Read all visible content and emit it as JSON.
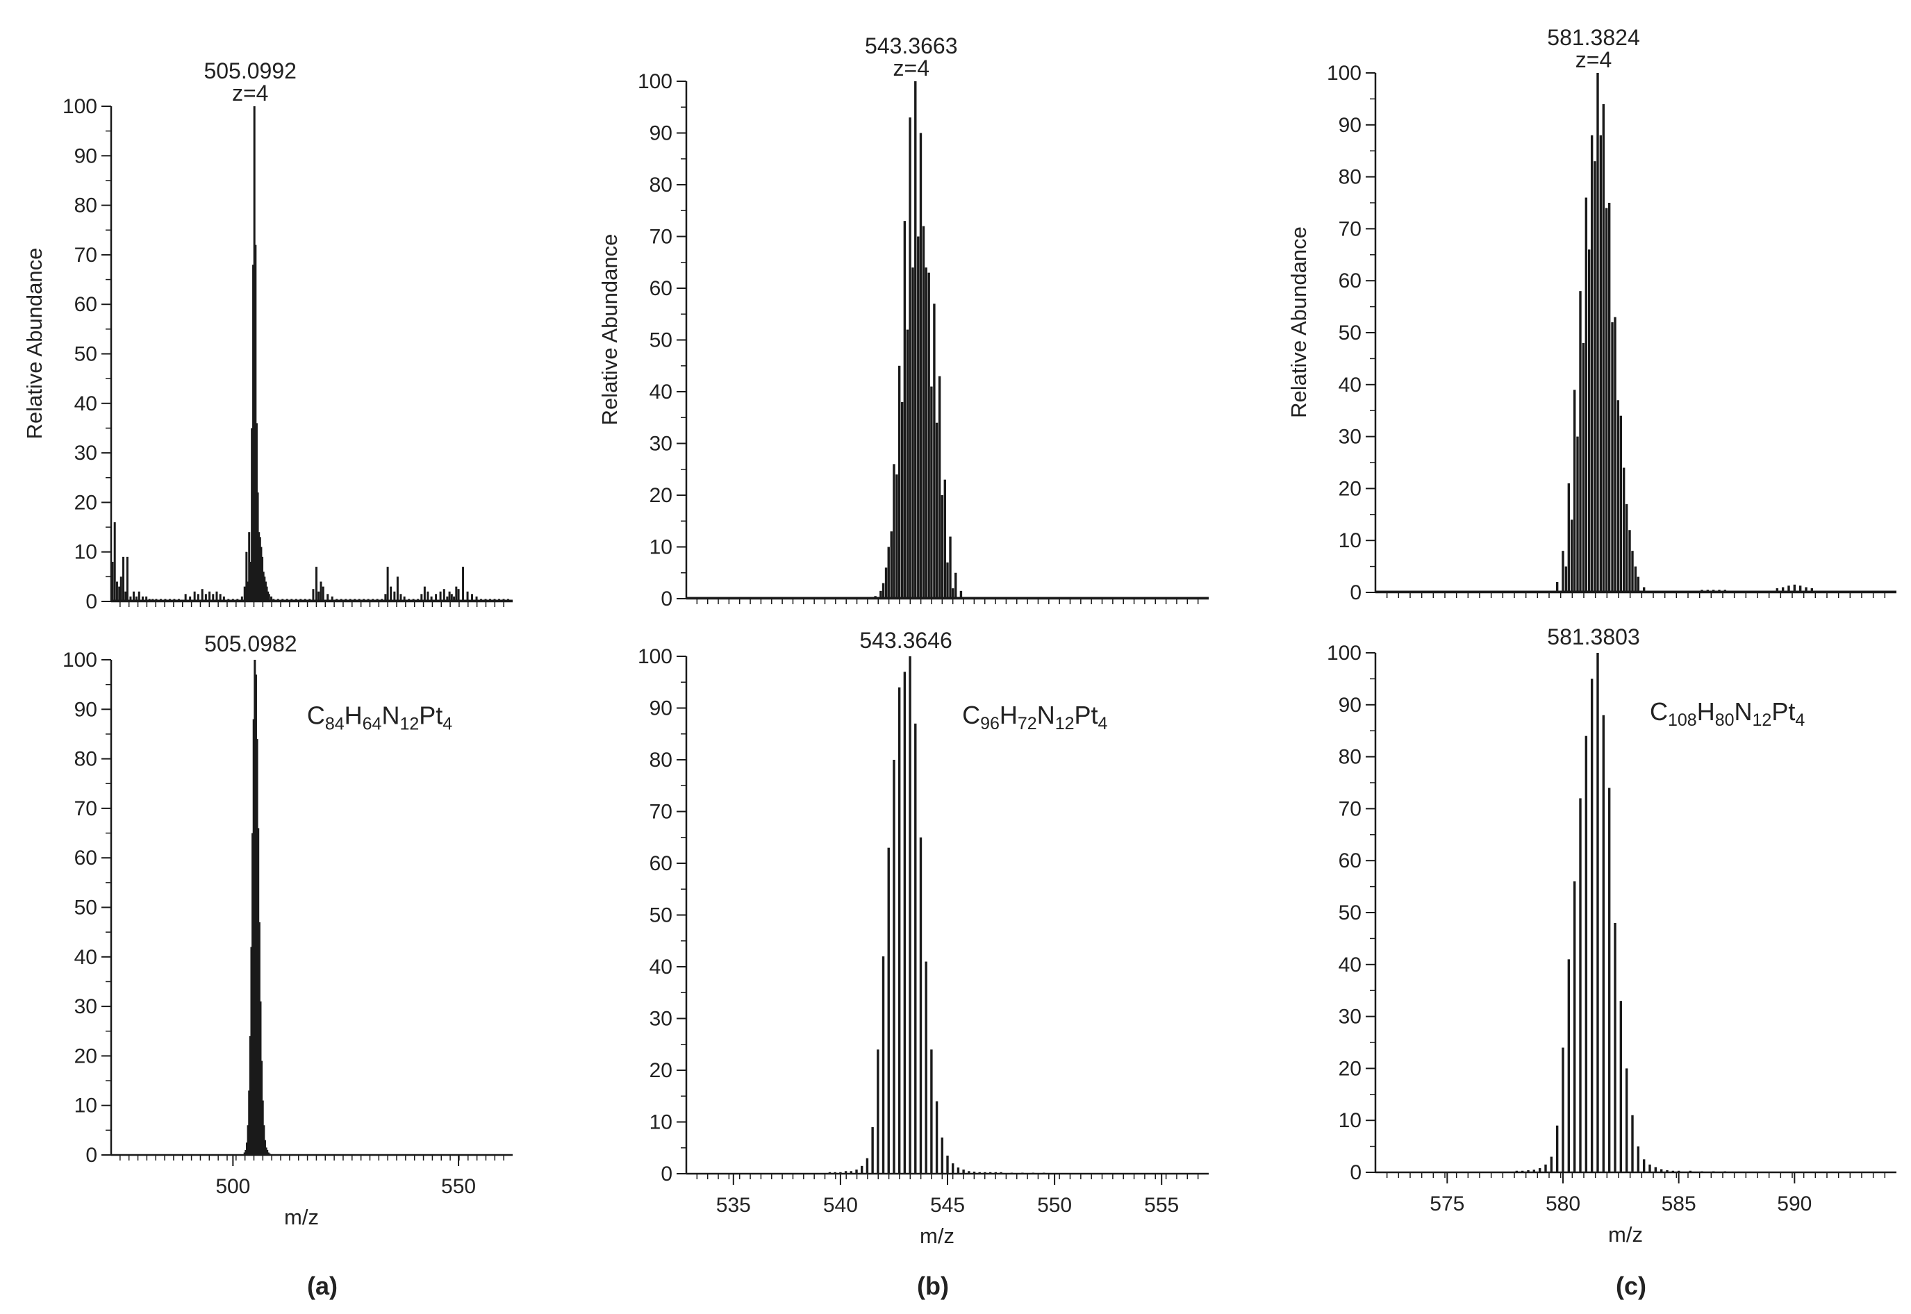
{
  "figure": {
    "panels": [
      {
        "id": "a",
        "label": "(a)"
      },
      {
        "id": "b",
        "label": "(b)"
      },
      {
        "id": "c",
        "label": "(c)"
      }
    ]
  },
  "chart_data": [
    {
      "type": "bar",
      "panel": "a",
      "role": "experimental",
      "peak_label": "505.0992",
      "charge_label": "z=4",
      "ylabel": "Relative Abundance",
      "xlabel": "",
      "xlim": [
        473,
        562
      ],
      "ylim": [
        0,
        100
      ],
      "yticks": [
        0,
        10,
        20,
        30,
        40,
        50,
        60,
        70,
        80,
        90,
        100
      ],
      "xticks": [],
      "series": [
        {
          "x": [
            473.3,
            473.8,
            474.3,
            474.8,
            475.2,
            475.7,
            476.2,
            476.6,
            477.3,
            478.0,
            478.6,
            479.2,
            480.0,
            480.8,
            481.5,
            482.2,
            483.0,
            484.0,
            485.0,
            486.0,
            487.0,
            488.0,
            489.5,
            490.5,
            491.5,
            492.3,
            493.2,
            494.0,
            494.8,
            495.6,
            496.4,
            497.2,
            498.0,
            499.0,
            500.0,
            501.0,
            502.0,
            502.6,
            503.0,
            503.3,
            503.6,
            503.9,
            504.2,
            504.5,
            504.75,
            505.0,
            505.25,
            505.5,
            505.75,
            506.0,
            506.25,
            506.5,
            506.75,
            507.0,
            507.25,
            507.5,
            507.75,
            508.0,
            508.5,
            509.0,
            510.0,
            511.0,
            512.0,
            513.0,
            514.0,
            515.0,
            516.0,
            517.0,
            517.8,
            518.5,
            519.0,
            519.5,
            520.0,
            521.0,
            522.0,
            523.0,
            524.0,
            525.0,
            526.0,
            527.0,
            528.0,
            529.0,
            530.0,
            531.0,
            532.0,
            533.0,
            533.8,
            534.3,
            535.0,
            535.8,
            536.5,
            537.2,
            538.0,
            539.0,
            540.0,
            541.0,
            541.8,
            542.5,
            543.2,
            544.0,
            545.0,
            546.0,
            546.8,
            547.5,
            548.0,
            548.5,
            549.0,
            549.5,
            550.0,
            551.0,
            552.0,
            553.0,
            554.0,
            555.0,
            556.0,
            557.0,
            558.0,
            559.0,
            560.0,
            561.0
          ],
          "y": [
            8,
            16,
            4,
            3,
            5,
            9,
            2,
            9,
            1,
            2,
            1,
            2,
            1,
            1,
            0.5,
            0.5,
            0.5,
            0.5,
            0.5,
            0.5,
            0.5,
            0.5,
            1.5,
            1,
            2,
            1.5,
            2.5,
            1.5,
            2,
            1.5,
            2,
            1.5,
            1,
            0.5,
            0.5,
            0.5,
            1,
            3,
            10,
            4,
            14,
            8,
            35,
            68,
            100,
            72,
            36,
            22,
            14,
            13,
            11,
            9,
            6,
            5,
            4,
            3,
            2,
            1.5,
            1,
            0.5,
            0.5,
            0.5,
            0.5,
            0.5,
            0.5,
            0.5,
            0.5,
            0.5,
            2.5,
            7,
            2,
            4,
            3,
            1.5,
            1,
            0.5,
            0.5,
            0.5,
            0.5,
            0.5,
            0.5,
            0.5,
            0.5,
            0.5,
            0.5,
            0.5,
            1.5,
            7,
            3,
            2,
            5,
            1.5,
            1,
            0.5,
            0.5,
            0.5,
            1.5,
            3,
            2,
            1,
            1.5,
            2,
            2.5,
            1,
            2,
            1.5,
            1,
            3,
            2.5,
            7,
            2,
            1.5,
            1,
            0.5,
            0.5,
            0.5,
            0.5,
            0.5,
            0.5,
            0.5
          ]
        }
      ]
    },
    {
      "type": "bar",
      "panel": "a",
      "role": "simulated",
      "peak_label": "505.0982",
      "formula": {
        "parts": [
          {
            "t": "C",
            "sub": false
          },
          {
            "t": "84",
            "sub": true
          },
          {
            "t": "H",
            "sub": false
          },
          {
            "t": "64",
            "sub": true
          },
          {
            "t": "N",
            "sub": false
          },
          {
            "t": "12",
            "sub": true
          },
          {
            "t": "Pt",
            "sub": false
          },
          {
            "t": "4",
            "sub": true
          }
        ]
      },
      "ylabel": "",
      "xlabel": "m/z",
      "xlim": [
        473,
        562
      ],
      "ylim": [
        0,
        100
      ],
      "yticks": [
        0,
        10,
        20,
        30,
        40,
        50,
        60,
        70,
        80,
        90,
        100
      ],
      "xticks": [
        500,
        550
      ],
      "series": [
        {
          "x": [
            502.6,
            502.85,
            503.1,
            503.35,
            503.6,
            503.85,
            504.1,
            504.35,
            504.6,
            504.85,
            505.1,
            505.35,
            505.6,
            505.85,
            506.1,
            506.35,
            506.6,
            506.85,
            507.1,
            507.35,
            507.6,
            507.85,
            508.1
          ],
          "y": [
            0.5,
            1,
            2.5,
            6,
            13,
            24,
            42,
            65,
            88,
            100,
            97,
            84,
            66,
            47,
            31,
            19,
            11,
            6,
            3,
            1.5,
            1,
            0.5,
            0.3
          ]
        }
      ]
    },
    {
      "type": "bar",
      "panel": "b",
      "role": "experimental",
      "peak_label": "543.3663",
      "charge_label": "z=4",
      "ylabel": "Relative Abundance",
      "xlabel": "",
      "xlim": [
        532.8,
        557.2
      ],
      "ylim": [
        0,
        100
      ],
      "yticks": [
        0,
        10,
        20,
        30,
        40,
        50,
        60,
        70,
        80,
        90,
        100
      ],
      "xticks": [],
      "series": [
        {
          "x": [
            541.63,
            541.88,
            542.13,
            542.38,
            542.63,
            542.88,
            543.13,
            543.38,
            543.63,
            543.88,
            544.13,
            544.38,
            544.63,
            544.88,
            545.13,
            545.38,
            545.63,
            542.0,
            542.25,
            542.5,
            542.75,
            543.0,
            543.25,
            543.5,
            543.75,
            544.0,
            544.25,
            544.5,
            544.75,
            545.0,
            545.25
          ],
          "y": [
            0.5,
            1.5,
            6,
            13,
            24,
            38,
            52,
            64,
            70,
            72,
            63,
            57,
            43,
            23,
            12,
            5,
            1.5,
            3,
            10,
            26,
            45,
            73,
            93,
            100,
            90,
            64,
            41,
            34,
            20,
            7,
            2
          ]
        }
      ]
    },
    {
      "type": "bar",
      "panel": "b",
      "role": "simulated",
      "peak_label": "543.3646",
      "formula": {
        "parts": [
          {
            "t": "C",
            "sub": false
          },
          {
            "t": "96",
            "sub": true
          },
          {
            "t": "H",
            "sub": false
          },
          {
            "t": "72",
            "sub": true
          },
          {
            "t": "N",
            "sub": false
          },
          {
            "t": "12",
            "sub": true
          },
          {
            "t": "Pt",
            "sub": false
          },
          {
            "t": "4",
            "sub": true
          }
        ]
      },
      "ylabel": "",
      "xlabel": "m/z",
      "xlim": [
        532.8,
        557.2
      ],
      "ylim": [
        0,
        100
      ],
      "yticks": [
        0,
        10,
        20,
        30,
        40,
        50,
        60,
        70,
        80,
        90,
        100
      ],
      "xticks": [
        535,
        540,
        545,
        550,
        555
      ],
      "series": [
        {
          "x": [
            539.5,
            539.75,
            540.0,
            540.25,
            540.5,
            540.75,
            541.0,
            541.25,
            541.5,
            541.75,
            542.0,
            542.25,
            542.5,
            542.75,
            543.0,
            543.25,
            543.5,
            543.75,
            544.0,
            544.25,
            544.5,
            544.75,
            545.0,
            545.25,
            545.5,
            545.75,
            546.0,
            546.25,
            546.5,
            546.75,
            547.0,
            547.25,
            547.5,
            548.0,
            548.5,
            549.0,
            549.5
          ],
          "y": [
            0.3,
            0.3,
            0.3,
            0.5,
            0.5,
            0.8,
            1.5,
            3,
            9,
            24,
            42,
            63,
            80,
            94,
            97,
            100,
            87,
            65,
            41,
            24,
            14,
            7,
            3.5,
            2,
            1.2,
            0.8,
            0.5,
            0.4,
            0.3,
            0.3,
            0.3,
            0.3,
            0.3,
            0.2,
            0.2,
            0.2,
            0.2
          ]
        }
      ]
    },
    {
      "type": "bar",
      "panel": "c",
      "role": "experimental",
      "peak_label": "581.3824",
      "charge_label": "z=4",
      "ylabel": "Relative Abundance",
      "xlabel": "",
      "xlim": [
        571.9,
        594.4
      ],
      "ylim": [
        0,
        100
      ],
      "yticks": [
        0,
        10,
        20,
        30,
        40,
        50,
        60,
        70,
        80,
        90,
        100
      ],
      "xticks": [],
      "series": [
        {
          "x": [
            579.75,
            580.0,
            580.25,
            580.5,
            580.75,
            581.0,
            581.25,
            581.5,
            581.75,
            582.0,
            582.25,
            582.5,
            582.75,
            583.0,
            583.25,
            583.5,
            580.13,
            580.38,
            580.63,
            580.88,
            581.13,
            581.38,
            581.63,
            581.88,
            582.13,
            582.38,
            582.63,
            582.88,
            583.13,
            586.0,
            586.25,
            586.5,
            586.75,
            587.0,
            589.25,
            589.5,
            589.75,
            590.0,
            590.25,
            590.5,
            590.75
          ],
          "y": [
            2,
            8,
            21,
            39,
            58,
            76,
            88,
            100,
            94,
            75,
            53,
            34,
            17,
            8,
            3,
            1,
            5,
            14,
            30,
            48,
            66,
            83,
            88,
            74,
            52,
            37,
            24,
            12,
            5,
            0.5,
            0.5,
            0.5,
            0.5,
            0.5,
            0.8,
            1,
            1.3,
            1.5,
            1.3,
            1,
            0.8
          ]
        }
      ]
    },
    {
      "type": "bar",
      "panel": "c",
      "role": "simulated",
      "peak_label": "581.3803",
      "formula": {
        "parts": [
          {
            "t": "C",
            "sub": false
          },
          {
            "t": "108",
            "sub": true
          },
          {
            "t": "H",
            "sub": false
          },
          {
            "t": "80",
            "sub": true
          },
          {
            "t": "N",
            "sub": false
          },
          {
            "t": "12",
            "sub": true
          },
          {
            "t": "Pt",
            "sub": false
          },
          {
            "t": "4",
            "sub": true
          }
        ]
      },
      "ylabel": "",
      "xlabel": "m/z",
      "xlim": [
        571.9,
        594.4
      ],
      "ylim": [
        0,
        100
      ],
      "yticks": [
        0,
        10,
        20,
        30,
        40,
        50,
        60,
        70,
        80,
        90,
        100
      ],
      "xticks": [
        575,
        580,
        585,
        590
      ],
      "series": [
        {
          "x": [
            578.0,
            578.25,
            578.5,
            578.75,
            579.0,
            579.25,
            579.5,
            579.75,
            580.0,
            580.25,
            580.5,
            580.75,
            581.0,
            581.25,
            581.5,
            581.75,
            582.0,
            582.25,
            582.5,
            582.75,
            583.0,
            583.25,
            583.5,
            583.75,
            584.0,
            584.25,
            584.5,
            584.75,
            585.0,
            585.5,
            586.0,
            586.5,
            587.0
          ],
          "y": [
            0.3,
            0.3,
            0.4,
            0.5,
            0.8,
            1.5,
            3,
            9,
            24,
            41,
            56,
            72,
            84,
            95,
            100,
            88,
            74,
            48,
            33,
            20,
            11,
            5,
            2.5,
            1.5,
            1,
            0.6,
            0.4,
            0.3,
            0.3,
            0.3,
            0.2,
            0.2,
            0.2
          ]
        }
      ]
    }
  ]
}
